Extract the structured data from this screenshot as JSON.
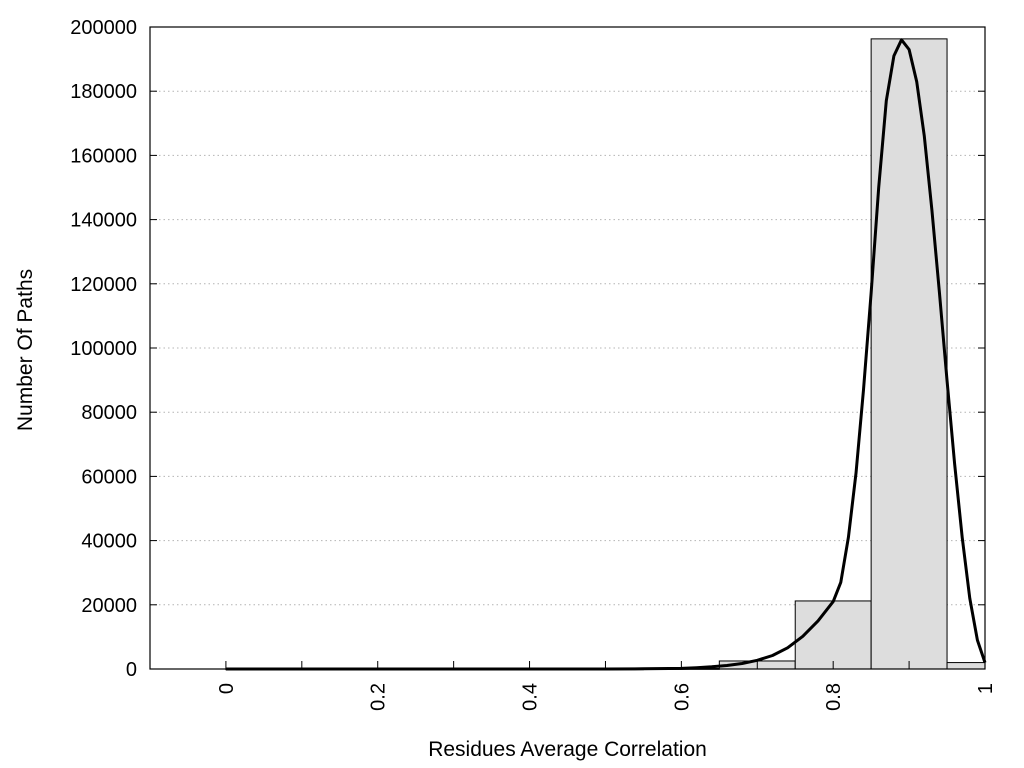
{
  "chart_data": {
    "type": "bar",
    "title": "",
    "xlabel": "Residues Average Correlation",
    "ylabel": "Number Of Paths",
    "xlim": [
      -0.1,
      1.0
    ],
    "ylim": [
      0,
      200000
    ],
    "grid": "horizontal dotted",
    "bar_color": "#dddddd",
    "curve_color": "#000000",
    "x_ticks": [
      {
        "value": 0,
        "label": "0"
      },
      {
        "value": 0.1,
        "label": ""
      },
      {
        "value": 0.2,
        "label": "0.2"
      },
      {
        "value": 0.3,
        "label": ""
      },
      {
        "value": 0.4,
        "label": "0.4"
      },
      {
        "value": 0.5,
        "label": ""
      },
      {
        "value": 0.6,
        "label": "0.6"
      },
      {
        "value": 0.7,
        "label": ""
      },
      {
        "value": 0.8,
        "label": "0.8"
      },
      {
        "value": 0.9,
        "label": ""
      },
      {
        "value": 1.0,
        "label": "1"
      }
    ],
    "y_ticks": [
      {
        "value": 0,
        "label": "0"
      },
      {
        "value": 20000,
        "label": "20000"
      },
      {
        "value": 40000,
        "label": "40000"
      },
      {
        "value": 60000,
        "label": "60000"
      },
      {
        "value": 80000,
        "label": "80000"
      },
      {
        "value": 100000,
        "label": "100000"
      },
      {
        "value": 120000,
        "label": "120000"
      },
      {
        "value": 140000,
        "label": "140000"
      },
      {
        "value": 160000,
        "label": "160000"
      },
      {
        "value": 180000,
        "label": "180000"
      },
      {
        "value": 200000,
        "label": "200000"
      }
    ],
    "bins": [
      {
        "start": 0.0,
        "end": 0.05,
        "value": 50
      },
      {
        "start": 0.05,
        "end": 0.15,
        "value": 50
      },
      {
        "start": 0.15,
        "end": 0.25,
        "value": 50
      },
      {
        "start": 0.25,
        "end": 0.35,
        "value": 50
      },
      {
        "start": 0.35,
        "end": 0.45,
        "value": 50
      },
      {
        "start": 0.45,
        "end": 0.55,
        "value": 50
      },
      {
        "start": 0.55,
        "end": 0.65,
        "value": 150
      },
      {
        "start": 0.65,
        "end": 0.75,
        "value": 2500
      },
      {
        "start": 0.75,
        "end": 0.85,
        "value": 21200
      },
      {
        "start": 0.85,
        "end": 0.95,
        "value": 196300
      },
      {
        "start": 0.95,
        "end": 1.0,
        "value": 2000
      }
    ],
    "fit_curve": {
      "x": [
        0.0,
        0.1,
        0.2,
        0.3,
        0.4,
        0.5,
        0.55,
        0.6,
        0.62,
        0.64,
        0.66,
        0.68,
        0.7,
        0.72,
        0.74,
        0.76,
        0.78,
        0.8,
        0.81,
        0.82,
        0.83,
        0.84,
        0.85,
        0.86,
        0.87,
        0.88,
        0.89,
        0.9,
        0.91,
        0.92,
        0.93,
        0.94,
        0.95,
        0.96,
        0.97,
        0.98,
        0.99,
        1.0
      ],
      "y": [
        0,
        0,
        0,
        0,
        0,
        0,
        50,
        200,
        400,
        700,
        1100,
        1700,
        2700,
        4200,
        6600,
        10200,
        15000,
        21000,
        27000,
        41000,
        61000,
        87000,
        117000,
        150000,
        177000,
        191000,
        196000,
        193000,
        183000,
        166000,
        143000,
        117000,
        90000,
        64000,
        41000,
        22000,
        9000,
        2000
      ]
    }
  }
}
